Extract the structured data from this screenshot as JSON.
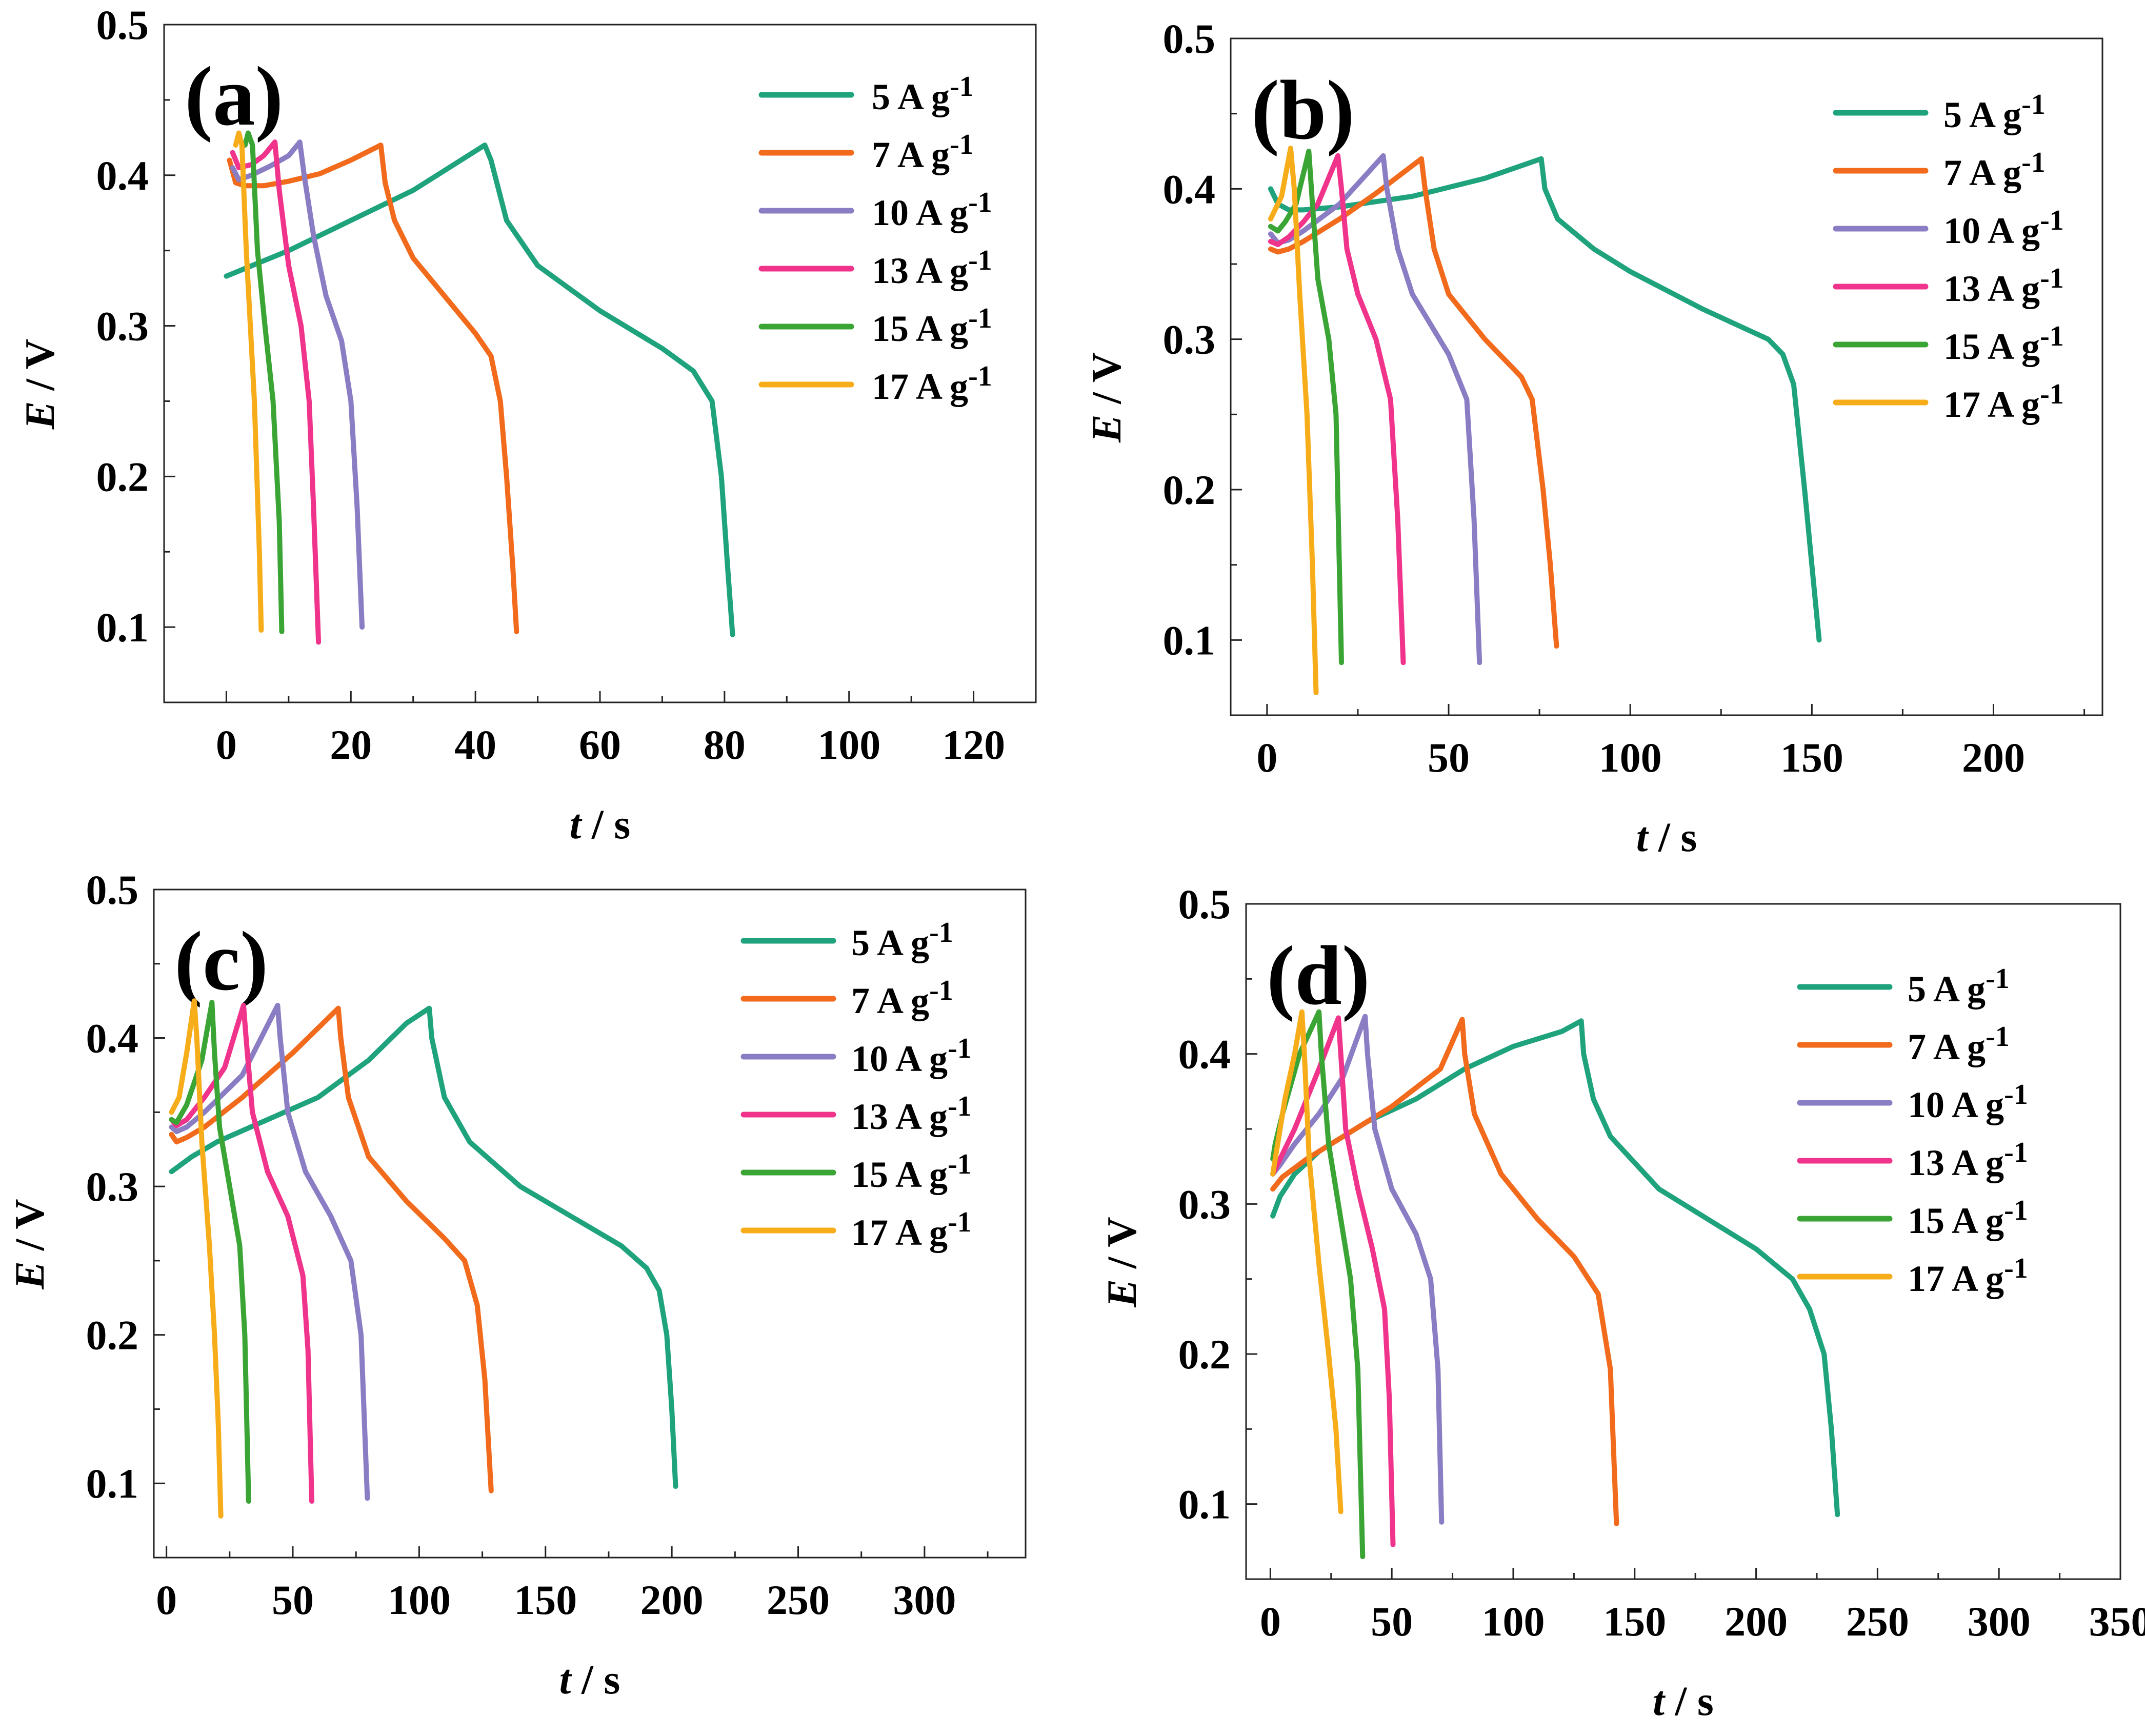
{
  "figure": {
    "legend_unit": "A g",
    "legend_unit_sup": "-1"
  },
  "chart_data": [
    {
      "panel": "(a)",
      "type": "line",
      "xlabel_var": "t",
      "xlabel_unit": " / s",
      "ylabel_var": "E",
      "ylabel_unit": " / V",
      "xlim": [
        -10,
        130
      ],
      "ylim": [
        0.05,
        0.5
      ],
      "xticks": [
        0,
        20,
        40,
        60,
        80,
        100,
        120
      ],
      "xticklabels": [
        "0",
        "20",
        "40",
        "60",
        "80",
        "100",
        "120"
      ],
      "yticks": [
        0.1,
        0.2,
        0.3,
        0.4,
        0.5
      ],
      "yticklabels": [
        "0.1",
        "0.2",
        "0.3",
        "0.4",
        "0.5"
      ],
      "legend_position": "top-right",
      "series": [
        {
          "name": "5 A g-1",
          "label": "5 A g",
          "color": "#1fa37c",
          "x": [
            0,
            10,
            20,
            30,
            41.5,
            42.5,
            45,
            50,
            60,
            70,
            75,
            78,
            79.5,
            80.5,
            81.3
          ],
          "y": [
            0.333,
            0.35,
            0.37,
            0.39,
            0.42,
            0.41,
            0.37,
            0.34,
            0.31,
            0.285,
            0.27,
            0.25,
            0.2,
            0.14,
            0.095
          ]
        },
        {
          "name": "7 A g-1",
          "label": "7 A g",
          "color": "#f26a1b",
          "x": [
            0.5,
            1.5,
            3,
            6,
            10,
            15,
            20,
            24.8,
            25.5,
            27,
            30,
            35,
            40,
            42.5,
            44,
            45,
            46,
            46.6
          ],
          "y": [
            0.41,
            0.395,
            0.393,
            0.393,
            0.396,
            0.401,
            0.41,
            0.42,
            0.395,
            0.37,
            0.345,
            0.32,
            0.295,
            0.28,
            0.25,
            0.2,
            0.14,
            0.097
          ]
        },
        {
          "name": "10 A g-1",
          "label": "10 A g",
          "color": "#8b7dc4",
          "x": [
            1,
            2,
            4,
            7,
            10,
            11.8,
            12.5,
            14,
            16,
            18.5,
            20,
            21,
            21.8
          ],
          "y": [
            0.405,
            0.397,
            0.4,
            0.406,
            0.413,
            0.422,
            0.4,
            0.36,
            0.32,
            0.29,
            0.25,
            0.18,
            0.1
          ]
        },
        {
          "name": "13 A g-1",
          "label": "13 A g",
          "color": "#f0338b",
          "x": [
            1,
            2,
            4,
            6,
            7.8,
            8.5,
            10,
            12,
            13.3,
            14,
            14.8
          ],
          "y": [
            0.415,
            0.405,
            0.407,
            0.413,
            0.422,
            0.39,
            0.34,
            0.3,
            0.25,
            0.18,
            0.09
          ]
        },
        {
          "name": "15 A g-1",
          "label": "15 A g",
          "color": "#3aa535",
          "x": [
            3,
            3.5,
            4.2,
            5,
            6.2,
            7.5,
            8.5,
            8.9
          ],
          "y": [
            0.42,
            0.428,
            0.42,
            0.35,
            0.3,
            0.25,
            0.17,
            0.097
          ]
        },
        {
          "name": "17 A g-1",
          "label": "17 A g",
          "color": "#f7ad1a",
          "x": [
            1.5,
            2,
            2.5,
            3.2,
            4.5,
            5.3,
            5.6
          ],
          "y": [
            0.42,
            0.428,
            0.42,
            0.35,
            0.25,
            0.15,
            0.098
          ]
        }
      ]
    },
    {
      "panel": "(b)",
      "type": "line",
      "xlabel_var": "t",
      "xlabel_unit": " / s",
      "ylabel_var": "E",
      "ylabel_unit": " / V",
      "xlim": [
        -10,
        230
      ],
      "ylim": [
        0.05,
        0.5
      ],
      "xticks": [
        0,
        50,
        100,
        150,
        200
      ],
      "xticklabels": [
        "0",
        "50",
        "100",
        "150",
        "200"
      ],
      "yticks": [
        0.1,
        0.2,
        0.3,
        0.4,
        0.5
      ],
      "yticklabels": [
        "0.1",
        "0.2",
        "0.3",
        "0.4",
        "0.5"
      ],
      "legend_position": "top-right",
      "series": [
        {
          "name": "5 A g-1",
          "label": "5 A g",
          "color": "#1fa37c",
          "x": [
            1,
            3,
            6,
            10,
            20,
            40,
            60,
            75.5,
            76.5,
            80,
            90,
            100,
            120,
            138,
            142,
            145,
            148,
            150,
            152
          ],
          "y": [
            0.4,
            0.39,
            0.386,
            0.386,
            0.388,
            0.395,
            0.407,
            0.42,
            0.4,
            0.38,
            0.36,
            0.345,
            0.32,
            0.3,
            0.29,
            0.27,
            0.2,
            0.15,
            0.1
          ]
        },
        {
          "name": "7 A g-1",
          "label": "7 A g",
          "color": "#f26a1b",
          "x": [
            1,
            3,
            6,
            10,
            20,
            30,
            42.5,
            43.5,
            46,
            50,
            60,
            70,
            73,
            76,
            78,
            79.7
          ],
          "y": [
            0.36,
            0.358,
            0.36,
            0.365,
            0.38,
            0.397,
            0.42,
            0.4,
            0.36,
            0.33,
            0.3,
            0.275,
            0.26,
            0.2,
            0.15,
            0.096
          ]
        },
        {
          "name": "10 A g-1",
          "label": "10 A g",
          "color": "#8b7dc4",
          "x": [
            1,
            3,
            6,
            10,
            20,
            32,
            33,
            36,
            40,
            50,
            55,
            57,
            58.5
          ],
          "y": [
            0.37,
            0.364,
            0.366,
            0.372,
            0.39,
            0.422,
            0.4,
            0.36,
            0.33,
            0.29,
            0.26,
            0.18,
            0.085
          ]
        },
        {
          "name": "13 A g-1",
          "label": "13 A g",
          "color": "#f0338b",
          "x": [
            1,
            3,
            6,
            10,
            14,
            19.5,
            20.5,
            22,
            25,
            30,
            34,
            36,
            37.5
          ],
          "y": [
            0.365,
            0.363,
            0.368,
            0.378,
            0.39,
            0.422,
            0.4,
            0.36,
            0.33,
            0.3,
            0.26,
            0.18,
            0.085
          ]
        },
        {
          "name": "15 A g-1",
          "label": "15 A g",
          "color": "#3aa535",
          "x": [
            1,
            3,
            5,
            8,
            11.5,
            12.5,
            14,
            17,
            19,
            20.5
          ],
          "y": [
            0.375,
            0.372,
            0.378,
            0.39,
            0.425,
            0.39,
            0.34,
            0.3,
            0.25,
            0.085
          ]
        },
        {
          "name": "17 A g-1",
          "label": "17 A g",
          "color": "#f7ad1a",
          "x": [
            1,
            2,
            4,
            6.5,
            7.5,
            9,
            11,
            12.5,
            13.5
          ],
          "y": [
            0.38,
            0.385,
            0.395,
            0.427,
            0.4,
            0.33,
            0.25,
            0.15,
            0.065
          ]
        }
      ]
    },
    {
      "panel": "(c)",
      "type": "line",
      "xlabel_var": "t",
      "xlabel_unit": " / s",
      "ylabel_var": "E",
      "ylabel_unit": " / V",
      "xlim": [
        -5,
        340
      ],
      "ylim": [
        0.05,
        0.5
      ],
      "xticks": [
        0,
        50,
        100,
        150,
        200,
        250,
        300
      ],
      "xticklabels": [
        "0",
        "50",
        "100",
        "150",
        "200",
        "250",
        "300"
      ],
      "yticks": [
        0.1,
        0.2,
        0.3,
        0.4,
        0.5
      ],
      "yticklabels": [
        "0.1",
        "0.2",
        "0.3",
        "0.4",
        "0.5"
      ],
      "legend_position": "top-right",
      "series": [
        {
          "name": "5 A g-1",
          "label": "5 A g",
          "color": "#1fa37c",
          "x": [
            2,
            10,
            20,
            40,
            60,
            80,
            95,
            104,
            105,
            110,
            120,
            140,
            160,
            180,
            190,
            195,
            198,
            200,
            201.5
          ],
          "y": [
            0.31,
            0.32,
            0.33,
            0.345,
            0.36,
            0.385,
            0.41,
            0.42,
            0.4,
            0.36,
            0.33,
            0.3,
            0.28,
            0.26,
            0.245,
            0.23,
            0.2,
            0.15,
            0.098
          ]
        },
        {
          "name": "7 A g-1",
          "label": "7 A g",
          "color": "#f26a1b",
          "x": [
            2,
            4,
            8,
            15,
            30,
            50,
            68,
            69,
            72,
            80,
            95,
            110,
            118,
            123,
            126,
            128.5
          ],
          "y": [
            0.335,
            0.33,
            0.333,
            0.34,
            0.36,
            0.39,
            0.42,
            0.4,
            0.36,
            0.32,
            0.29,
            0.265,
            0.25,
            0.22,
            0.17,
            0.095
          ]
        },
        {
          "name": "10 A g-1",
          "label": "10 A g",
          "color": "#8b7dc4",
          "x": [
            2,
            4,
            8,
            15,
            30,
            44,
            45,
            48,
            55,
            65,
            73,
            77,
            79.5
          ],
          "y": [
            0.34,
            0.337,
            0.34,
            0.35,
            0.375,
            0.422,
            0.4,
            0.35,
            0.31,
            0.28,
            0.25,
            0.2,
            0.09
          ]
        },
        {
          "name": "13 A g-1",
          "label": "13 A g",
          "color": "#f0338b",
          "x": [
            2,
            4,
            8,
            15,
            23,
            30.5,
            31.5,
            34,
            40,
            48,
            54,
            56,
            57.5
          ],
          "y": [
            0.345,
            0.341,
            0.345,
            0.36,
            0.38,
            0.422,
            0.4,
            0.35,
            0.31,
            0.28,
            0.24,
            0.19,
            0.088
          ]
        },
        {
          "name": "15 A g-1",
          "label": "15 A g",
          "color": "#3aa535",
          "x": [
            2,
            4,
            8,
            14,
            18,
            19,
            21,
            25,
            29,
            31,
            32.5
          ],
          "y": [
            0.345,
            0.343,
            0.355,
            0.385,
            0.424,
            0.39,
            0.34,
            0.3,
            0.26,
            0.2,
            0.088
          ]
        },
        {
          "name": "17 A g-1",
          "label": "17 A g",
          "color": "#f7ad1a",
          "x": [
            2,
            5,
            8,
            11,
            12,
            14,
            17,
            19,
            20.5,
            21.5
          ],
          "y": [
            0.35,
            0.36,
            0.39,
            0.425,
            0.4,
            0.33,
            0.26,
            0.2,
            0.14,
            0.078
          ]
        }
      ]
    },
    {
      "panel": "(d)",
      "type": "line",
      "xlabel_var": "t",
      "xlabel_unit": " / s",
      "ylabel_var": "E",
      "ylabel_unit": " / V",
      "xlim": [
        -10,
        350
      ],
      "ylim": [
        0.05,
        0.5
      ],
      "xticks": [
        0,
        50,
        100,
        150,
        200,
        250,
        300,
        350
      ],
      "xticklabels": [
        "0",
        "50",
        "100",
        "150",
        "200",
        "250",
        "300",
        "350"
      ],
      "yticks": [
        0.1,
        0.2,
        0.3,
        0.4,
        0.5
      ],
      "yticklabels": [
        "0.1",
        "0.2",
        "0.3",
        "0.4",
        "0.5"
      ],
      "legend_position": "top-right",
      "series": [
        {
          "name": "5 A g-1",
          "label": "5 A g",
          "color": "#1fa37c",
          "x": [
            1,
            4,
            10,
            20,
            40,
            60,
            80,
            100,
            120,
            128,
            129,
            133,
            140,
            160,
            180,
            200,
            215,
            222,
            228,
            231,
            233.5
          ],
          "y": [
            0.292,
            0.305,
            0.32,
            0.335,
            0.355,
            0.37,
            0.39,
            0.405,
            0.415,
            0.422,
            0.4,
            0.37,
            0.345,
            0.31,
            0.29,
            0.27,
            0.25,
            0.23,
            0.2,
            0.15,
            0.093
          ]
        },
        {
          "name": "7 A g-1",
          "label": "7 A g",
          "color": "#f26a1b",
          "x": [
            1,
            5,
            15,
            30,
            50,
            70,
            79,
            80,
            84,
            95,
            110,
            125,
            135,
            140,
            142.5
          ],
          "y": [
            0.31,
            0.318,
            0.33,
            0.345,
            0.365,
            0.39,
            0.423,
            0.4,
            0.36,
            0.32,
            0.29,
            0.265,
            0.24,
            0.19,
            0.087
          ]
        },
        {
          "name": "10 A g-1",
          "label": "10 A g",
          "color": "#8b7dc4",
          "x": [
            1,
            4,
            10,
            20,
            30,
            39,
            40,
            43,
            50,
            60,
            66,
            69,
            70.5
          ],
          "y": [
            0.32,
            0.326,
            0.34,
            0.36,
            0.385,
            0.425,
            0.4,
            0.35,
            0.31,
            0.28,
            0.25,
            0.19,
            0.088
          ]
        },
        {
          "name": "13 A g-1",
          "label": "13 A g",
          "color": "#f0338b",
          "x": [
            1,
            4,
            10,
            20,
            28,
            29,
            31,
            36,
            42,
            47,
            49,
            50.5
          ],
          "y": [
            0.32,
            0.33,
            0.35,
            0.39,
            0.424,
            0.4,
            0.35,
            0.31,
            0.27,
            0.23,
            0.17,
            0.073
          ]
        },
        {
          "name": "15 A g-1",
          "label": "15 A g",
          "color": "#3aa535",
          "x": [
            1,
            2,
            5,
            12,
            20,
            21,
            24,
            29,
            33,
            36,
            38
          ],
          "y": [
            0.33,
            0.34,
            0.36,
            0.4,
            0.428,
            0.4,
            0.34,
            0.29,
            0.25,
            0.19,
            0.065
          ]
        },
        {
          "name": "17 A g-1",
          "label": "17 A g",
          "color": "#f7ad1a",
          "x": [
            1,
            3,
            6,
            10,
            13,
            14,
            16,
            20,
            24,
            27,
            29
          ],
          "y": [
            0.32,
            0.34,
            0.37,
            0.4,
            0.428,
            0.4,
            0.33,
            0.26,
            0.2,
            0.15,
            0.095
          ]
        }
      ]
    }
  ]
}
